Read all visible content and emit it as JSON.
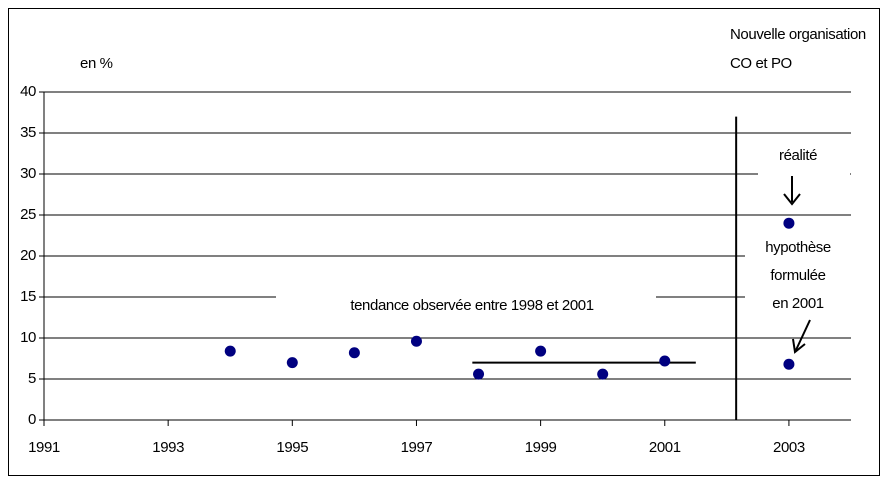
{
  "chart_data": {
    "type": "scatter",
    "y_label": "en %",
    "x": [
      1994,
      1995,
      1996,
      1997,
      1998,
      1999,
      2000,
      2001,
      2003,
      2003
    ],
    "series": [
      {
        "color": "#000080",
        "values": [
          8.4,
          7.0,
          8.2,
          9.6,
          5.6,
          8.4,
          5.6,
          7.2,
          24,
          6.8
        ]
      }
    ],
    "xlim": [
      1991,
      2004
    ],
    "xticks": [
      1991,
      1993,
      1995,
      1997,
      1999,
      2001,
      2003
    ],
    "ylim": [
      0,
      40
    ],
    "yticks": [
      0,
      5,
      10,
      15,
      20,
      25,
      30,
      35,
      40
    ],
    "grid": true,
    "trend": {
      "x": [
        1997.9,
        2001.5
      ],
      "y": [
        7,
        7
      ]
    },
    "divider": {
      "x": 2002.15,
      "y": [
        0,
        37
      ]
    },
    "annotations": {
      "org_line1": "Nouvelle organisation",
      "org_line2": "CO  et PO",
      "reality": "réalité",
      "hypothesis_line1": "hypothèse",
      "hypothesis_line2": "formulée",
      "hypothesis_line3": "en 2001",
      "trend": "tendance observée entre 1998 et 2001"
    }
  }
}
